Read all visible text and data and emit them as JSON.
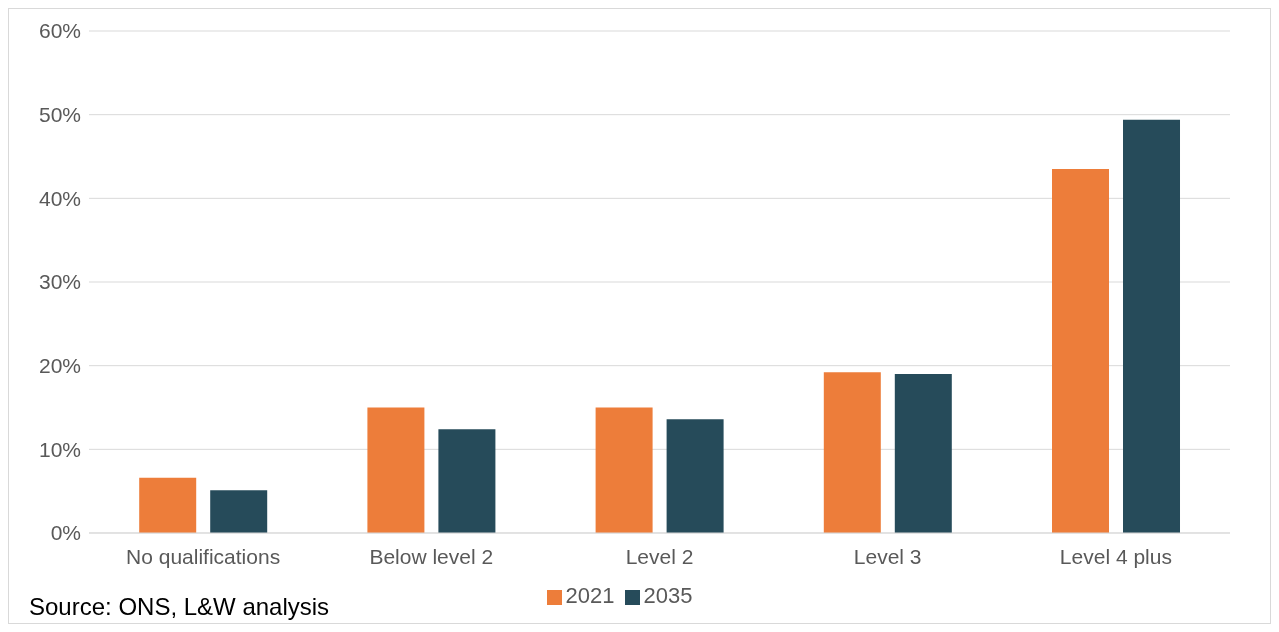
{
  "chart_data": {
    "type": "bar",
    "categories": [
      "No qualifications",
      "Below level 2",
      "Level 2",
      "Level 3",
      "Level 4 plus"
    ],
    "series": [
      {
        "name": "2021",
        "color": "#ed7d3a",
        "values": [
          6.6,
          15.0,
          15.0,
          19.2,
          43.5
        ]
      },
      {
        "name": "2035",
        "color": "#264b5a",
        "values": [
          5.1,
          12.4,
          13.6,
          19.0,
          49.4
        ]
      }
    ],
    "ylim": [
      0,
      60
    ],
    "yticks": [
      {
        "value": 0,
        "label": "0%"
      },
      {
        "value": 10,
        "label": "10%"
      },
      {
        "value": 20,
        "label": "20%"
      },
      {
        "value": 30,
        "label": "30%"
      },
      {
        "value": 40,
        "label": "40%"
      },
      {
        "value": 50,
        "label": "50%"
      },
      {
        "value": 60,
        "label": "60%"
      }
    ],
    "grid": "y",
    "legend": "bottom",
    "annotations": [
      "Source: ONS, L&W analysis"
    ]
  }
}
